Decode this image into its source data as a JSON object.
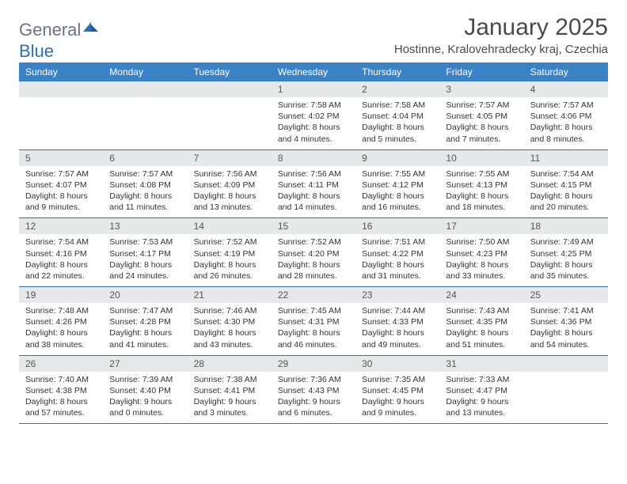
{
  "brand": {
    "word1": "General",
    "word2": "Blue"
  },
  "title": "January 2025",
  "location": "Hostinne, Kralovehradecky kraj, Czechia",
  "colors": {
    "header_bg": "#3b82c4",
    "header_text": "#ffffff",
    "daynum_bg": "#e7e8ea",
    "row_border": "#3b6fa0",
    "logo_gray": "#6b7280",
    "logo_blue": "#2b6fb3"
  },
  "day_headers": [
    "Sunday",
    "Monday",
    "Tuesday",
    "Wednesday",
    "Thursday",
    "Friday",
    "Saturday"
  ],
  "weeks": [
    [
      {
        "n": "",
        "sr": "",
        "ss": "",
        "dl": ""
      },
      {
        "n": "",
        "sr": "",
        "ss": "",
        "dl": ""
      },
      {
        "n": "",
        "sr": "",
        "ss": "",
        "dl": ""
      },
      {
        "n": "1",
        "sr": "7:58 AM",
        "ss": "4:02 PM",
        "dl": "8 hours and 4 minutes."
      },
      {
        "n": "2",
        "sr": "7:58 AM",
        "ss": "4:04 PM",
        "dl": "8 hours and 5 minutes."
      },
      {
        "n": "3",
        "sr": "7:57 AM",
        "ss": "4:05 PM",
        "dl": "8 hours and 7 minutes."
      },
      {
        "n": "4",
        "sr": "7:57 AM",
        "ss": "4:06 PM",
        "dl": "8 hours and 8 minutes."
      }
    ],
    [
      {
        "n": "5",
        "sr": "7:57 AM",
        "ss": "4:07 PM",
        "dl": "8 hours and 9 minutes."
      },
      {
        "n": "6",
        "sr": "7:57 AM",
        "ss": "4:08 PM",
        "dl": "8 hours and 11 minutes."
      },
      {
        "n": "7",
        "sr": "7:56 AM",
        "ss": "4:09 PM",
        "dl": "8 hours and 13 minutes."
      },
      {
        "n": "8",
        "sr": "7:56 AM",
        "ss": "4:11 PM",
        "dl": "8 hours and 14 minutes."
      },
      {
        "n": "9",
        "sr": "7:55 AM",
        "ss": "4:12 PM",
        "dl": "8 hours and 16 minutes."
      },
      {
        "n": "10",
        "sr": "7:55 AM",
        "ss": "4:13 PM",
        "dl": "8 hours and 18 minutes."
      },
      {
        "n": "11",
        "sr": "7:54 AM",
        "ss": "4:15 PM",
        "dl": "8 hours and 20 minutes."
      }
    ],
    [
      {
        "n": "12",
        "sr": "7:54 AM",
        "ss": "4:16 PM",
        "dl": "8 hours and 22 minutes."
      },
      {
        "n": "13",
        "sr": "7:53 AM",
        "ss": "4:17 PM",
        "dl": "8 hours and 24 minutes."
      },
      {
        "n": "14",
        "sr": "7:52 AM",
        "ss": "4:19 PM",
        "dl": "8 hours and 26 minutes."
      },
      {
        "n": "15",
        "sr": "7:52 AM",
        "ss": "4:20 PM",
        "dl": "8 hours and 28 minutes."
      },
      {
        "n": "16",
        "sr": "7:51 AM",
        "ss": "4:22 PM",
        "dl": "8 hours and 31 minutes."
      },
      {
        "n": "17",
        "sr": "7:50 AM",
        "ss": "4:23 PM",
        "dl": "8 hours and 33 minutes."
      },
      {
        "n": "18",
        "sr": "7:49 AM",
        "ss": "4:25 PM",
        "dl": "8 hours and 35 minutes."
      }
    ],
    [
      {
        "n": "19",
        "sr": "7:48 AM",
        "ss": "4:26 PM",
        "dl": "8 hours and 38 minutes."
      },
      {
        "n": "20",
        "sr": "7:47 AM",
        "ss": "4:28 PM",
        "dl": "8 hours and 41 minutes."
      },
      {
        "n": "21",
        "sr": "7:46 AM",
        "ss": "4:30 PM",
        "dl": "8 hours and 43 minutes."
      },
      {
        "n": "22",
        "sr": "7:45 AM",
        "ss": "4:31 PM",
        "dl": "8 hours and 46 minutes."
      },
      {
        "n": "23",
        "sr": "7:44 AM",
        "ss": "4:33 PM",
        "dl": "8 hours and 49 minutes."
      },
      {
        "n": "24",
        "sr": "7:43 AM",
        "ss": "4:35 PM",
        "dl": "8 hours and 51 minutes."
      },
      {
        "n": "25",
        "sr": "7:41 AM",
        "ss": "4:36 PM",
        "dl": "8 hours and 54 minutes."
      }
    ],
    [
      {
        "n": "26",
        "sr": "7:40 AM",
        "ss": "4:38 PM",
        "dl": "8 hours and 57 minutes."
      },
      {
        "n": "27",
        "sr": "7:39 AM",
        "ss": "4:40 PM",
        "dl": "9 hours and 0 minutes."
      },
      {
        "n": "28",
        "sr": "7:38 AM",
        "ss": "4:41 PM",
        "dl": "9 hours and 3 minutes."
      },
      {
        "n": "29",
        "sr": "7:36 AM",
        "ss": "4:43 PM",
        "dl": "9 hours and 6 minutes."
      },
      {
        "n": "30",
        "sr": "7:35 AM",
        "ss": "4:45 PM",
        "dl": "9 hours and 9 minutes."
      },
      {
        "n": "31",
        "sr": "7:33 AM",
        "ss": "4:47 PM",
        "dl": "9 hours and 13 minutes."
      },
      {
        "n": "",
        "sr": "",
        "ss": "",
        "dl": ""
      }
    ]
  ],
  "labels": {
    "sunrise": "Sunrise:",
    "sunset": "Sunset:",
    "daylight": "Daylight:"
  }
}
